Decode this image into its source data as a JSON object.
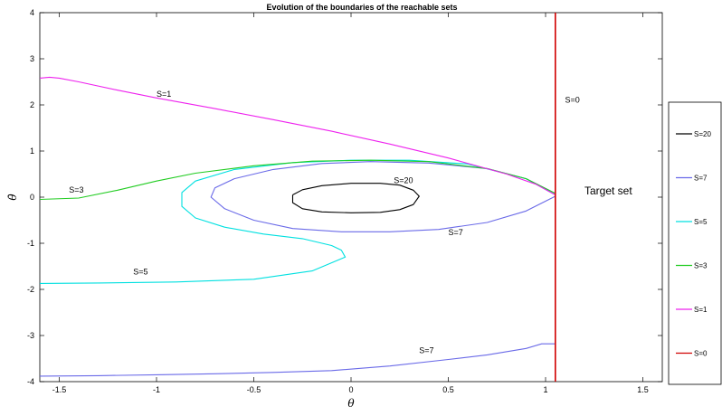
{
  "chart_data": {
    "type": "line",
    "title": "Evolution of the boundaries of the reachable sets",
    "xlabel": "θ",
    "ylabel": "θ̇",
    "xlim": [
      -1.6,
      1.6
    ],
    "ylim": [
      -4,
      4
    ],
    "xticks": [
      -1.5,
      -1,
      -0.5,
      0,
      0.5,
      1,
      1.5
    ],
    "xtick_labels": [
      "-1.5",
      "-1",
      "-0.5",
      "0",
      "0.5",
      "1",
      "1.5"
    ],
    "yticks": [
      -4,
      -3,
      -2,
      -1,
      0,
      1,
      2,
      3,
      4
    ],
    "ytick_labels": [
      "-4",
      "-3",
      "-2",
      "-1",
      "0",
      "1",
      "2",
      "3",
      "4"
    ],
    "grid": false,
    "legend_position": "right, outside",
    "series": [
      {
        "name": "S=20",
        "color": "#000000",
        "x": [
          -0.3,
          -0.25,
          -0.15,
          0.0,
          0.15,
          0.25,
          0.32,
          0.35,
          0.32,
          0.25,
          0.15,
          0.0,
          -0.15,
          -0.25,
          -0.3,
          -0.3
        ],
        "y": [
          0.05,
          0.16,
          0.25,
          0.3,
          0.3,
          0.26,
          0.15,
          0.02,
          -0.16,
          -0.27,
          -0.33,
          -0.34,
          -0.32,
          -0.25,
          -0.12,
          0.05
        ]
      },
      {
        "name": "S=7",
        "color": "#6a6ae8",
        "x": [
          1.05,
          0.9,
          0.7,
          0.45,
          0.2,
          -0.05,
          -0.3,
          -0.5,
          -0.65,
          -0.72,
          -0.7,
          -0.6,
          -0.4,
          -0.15,
          0.1,
          0.4,
          0.7,
          0.9,
          1.05
        ],
        "y": [
          0.02,
          -0.3,
          -0.55,
          -0.7,
          -0.75,
          -0.75,
          -0.68,
          -0.5,
          -0.25,
          0.0,
          0.2,
          0.4,
          0.6,
          0.73,
          0.77,
          0.74,
          0.62,
          0.4,
          0.08
        ]
      },
      {
        "name": "S=7",
        "color": "#6a6ae8",
        "x": [
          -1.6,
          -1.3,
          -1.0,
          -0.7,
          -0.4,
          -0.1,
          0.2,
          0.5,
          0.7,
          0.9,
          0.98,
          1.05
        ],
        "y": [
          -3.88,
          -3.87,
          -3.85,
          -3.83,
          -3.8,
          -3.76,
          -3.66,
          -3.52,
          -3.42,
          -3.28,
          -3.18,
          -3.18
        ]
      },
      {
        "name": "S=5",
        "color": "#00e0e0",
        "x": [
          1.05,
          0.9,
          0.6,
          0.3,
          0.0,
          -0.3,
          -0.6,
          -0.8,
          -0.87,
          -0.87,
          -0.8,
          -0.65,
          -0.45,
          -0.25,
          -0.1,
          -0.05,
          -0.03,
          -0.2,
          -0.5,
          -0.9,
          -1.3,
          -1.6
        ],
        "y": [
          0.05,
          0.4,
          0.72,
          0.8,
          0.8,
          0.75,
          0.6,
          0.35,
          0.1,
          -0.2,
          -0.45,
          -0.65,
          -0.8,
          -0.9,
          -1.05,
          -1.15,
          -1.3,
          -1.6,
          -1.78,
          -1.84,
          -1.86,
          -1.87
        ]
      },
      {
        "name": "S=3",
        "color": "#22cc22",
        "x": [
          -1.6,
          -1.4,
          -1.2,
          -1.0,
          -0.8,
          -0.5,
          -0.2,
          0.1,
          0.4,
          0.7,
          0.9,
          1.05
        ],
        "y": [
          -0.05,
          -0.02,
          0.15,
          0.35,
          0.52,
          0.68,
          0.78,
          0.8,
          0.77,
          0.62,
          0.4,
          0.08
        ]
      },
      {
        "name": "S=1",
        "color": "#ee22ee",
        "x": [
          -1.6,
          -1.55,
          -1.5,
          -1.4,
          -1.2,
          -1.0,
          -0.7,
          -0.4,
          -0.1,
          0.2,
          0.5,
          0.8,
          0.95,
          1.05
        ],
        "y": [
          2.58,
          2.6,
          2.58,
          2.5,
          2.32,
          2.15,
          1.92,
          1.68,
          1.43,
          1.15,
          0.85,
          0.5,
          0.28,
          0.05
        ]
      },
      {
        "name": "S=0",
        "color": "#d00000",
        "x": [
          1.05,
          1.05
        ],
        "y": [
          -4,
          4
        ]
      }
    ],
    "annotations": [
      {
        "text": "S=1",
        "x": -1.0,
        "y": 2.18
      },
      {
        "text": "S=0",
        "x": 1.1,
        "y": 2.05
      },
      {
        "text": "S=3",
        "x": -1.45,
        "y": 0.1
      },
      {
        "text": "S=20",
        "x": 0.22,
        "y": 0.3
      },
      {
        "text": "S=7",
        "x": 0.5,
        "y": -0.82
      },
      {
        "text": "S=5",
        "x": -1.12,
        "y": -1.68
      },
      {
        "text": "S=7",
        "x": 0.35,
        "y": -3.38
      },
      {
        "text": "Target set",
        "x": 1.2,
        "y": 0.06,
        "large": true
      }
    ],
    "legend": [
      "S=20",
      "S=7",
      "S=5",
      "S=3",
      "S=1",
      "S=0"
    ],
    "legend_colors": [
      "#000000",
      "#6a6ae8",
      "#00e0e0",
      "#22cc22",
      "#ee22ee",
      "#d00000"
    ]
  }
}
